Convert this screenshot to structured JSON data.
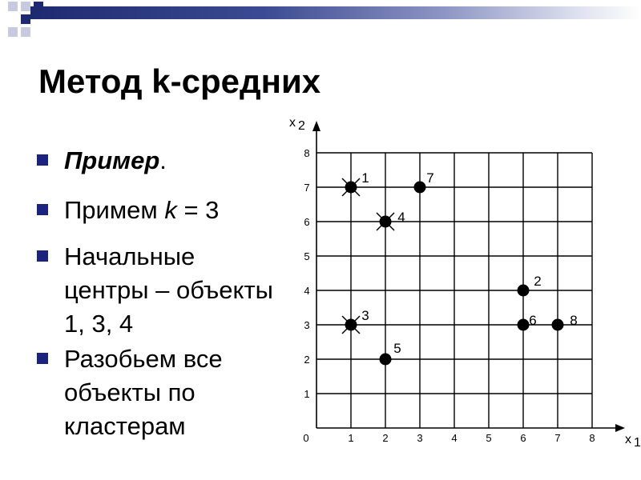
{
  "slide": {
    "title": "Метод k-средних",
    "bullets": [
      {
        "text_bold_italic": "Пример",
        "suffix": "."
      },
      {
        "prefix": "Примем ",
        "var": "k",
        "suffix": " = 3"
      },
      {
        "text": "Начальные центры – объекты 1, 3, 4"
      },
      {
        "text": "Разобьем все объекты по кластерам"
      }
    ]
  },
  "colors": {
    "bar_dark": "#1e2a70",
    "bullet": "#1a237e",
    "square_dark": "#1e2a70",
    "square_light": "#c8cbe0"
  },
  "chart_data": {
    "type": "scatter",
    "xlabel": "x",
    "xlabel_sub": "1",
    "ylabel": "x",
    "ylabel_sub": "2",
    "x_ticks": [
      "0",
      "1",
      "2",
      "3",
      "4",
      "5",
      "6",
      "7",
      "8"
    ],
    "y_ticks": [
      "1",
      "2",
      "3",
      "4",
      "5",
      "6",
      "7",
      "8"
    ],
    "xlim": [
      0,
      8
    ],
    "ylim": [
      0,
      8
    ],
    "grid": true,
    "points": [
      {
        "label": "1",
        "x": 1,
        "y": 7,
        "center": true
      },
      {
        "label": "2",
        "x": 6,
        "y": 4,
        "center": false
      },
      {
        "label": "3",
        "x": 1,
        "y": 3,
        "center": true
      },
      {
        "label": "4",
        "x": 2,
        "y": 6,
        "center": true
      },
      {
        "label": "5",
        "x": 2,
        "y": 2,
        "center": false
      },
      {
        "label": "6",
        "x": 6,
        "y": 3,
        "center": false
      },
      {
        "label": "7",
        "x": 3,
        "y": 7,
        "center": false
      },
      {
        "label": "8",
        "x": 7,
        "y": 3,
        "center": false
      }
    ]
  }
}
